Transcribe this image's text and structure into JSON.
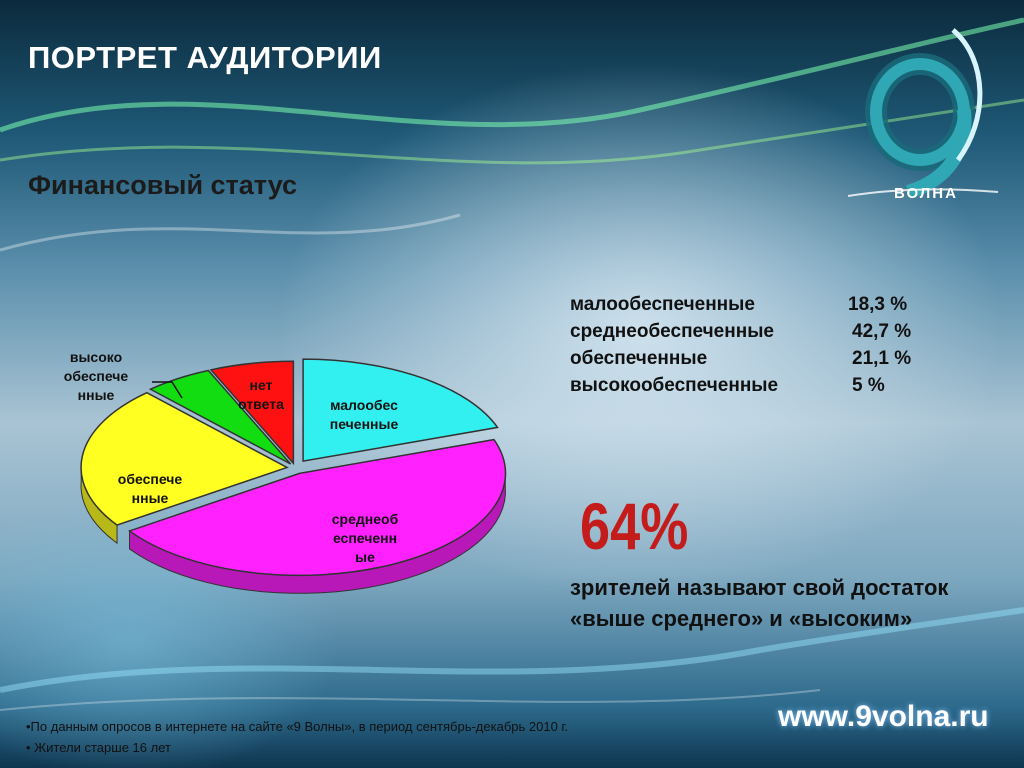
{
  "slide": {
    "title": "ПОРТРЕТ АУДИТОРИИ",
    "subtitle": "Финансовый статус",
    "url": "www.9volna.ru",
    "footnotes": [
      "•По данным опросов в интернете на сайте «9 Волны», в период сентябрь-декабрь 2010 г.",
      "• Жители старше 16 лет"
    ]
  },
  "logo": {
    "text": "ВОЛНА",
    "icon": "9-wave-logo"
  },
  "legend": [
    {
      "name": "малообеспеченные",
      "value": "18,3 %"
    },
    {
      "name": "среднеобеспеченные",
      "value": "42,7 %"
    },
    {
      "name": "обеспеченные",
      "value": "21,1 %"
    },
    {
      "name": "высокообеспеченные",
      "value": "5 %"
    }
  ],
  "highlight": {
    "value": "64%",
    "text": "зрителей называют свой достаток «выше среднего» и «высоким»"
  },
  "chart_data": {
    "type": "pie",
    "style": "3d-exploded",
    "slices": [
      {
        "label": "малообес\nпеченные",
        "value": 18.3,
        "color": "#33f0f0"
      },
      {
        "label": "среднеоб\nеспеченн\nые",
        "value": 42.7,
        "color": "#ff22ff"
      },
      {
        "label": "обеспече\nнные",
        "value": 21.1,
        "color": "#ffff22"
      },
      {
        "label": "высоко\nобеспече\nнные",
        "value": 5,
        "color": "#11dd11"
      },
      {
        "label": "нет\nответа",
        "value": 6.1,
        "color": "#ff1111"
      }
    ]
  }
}
